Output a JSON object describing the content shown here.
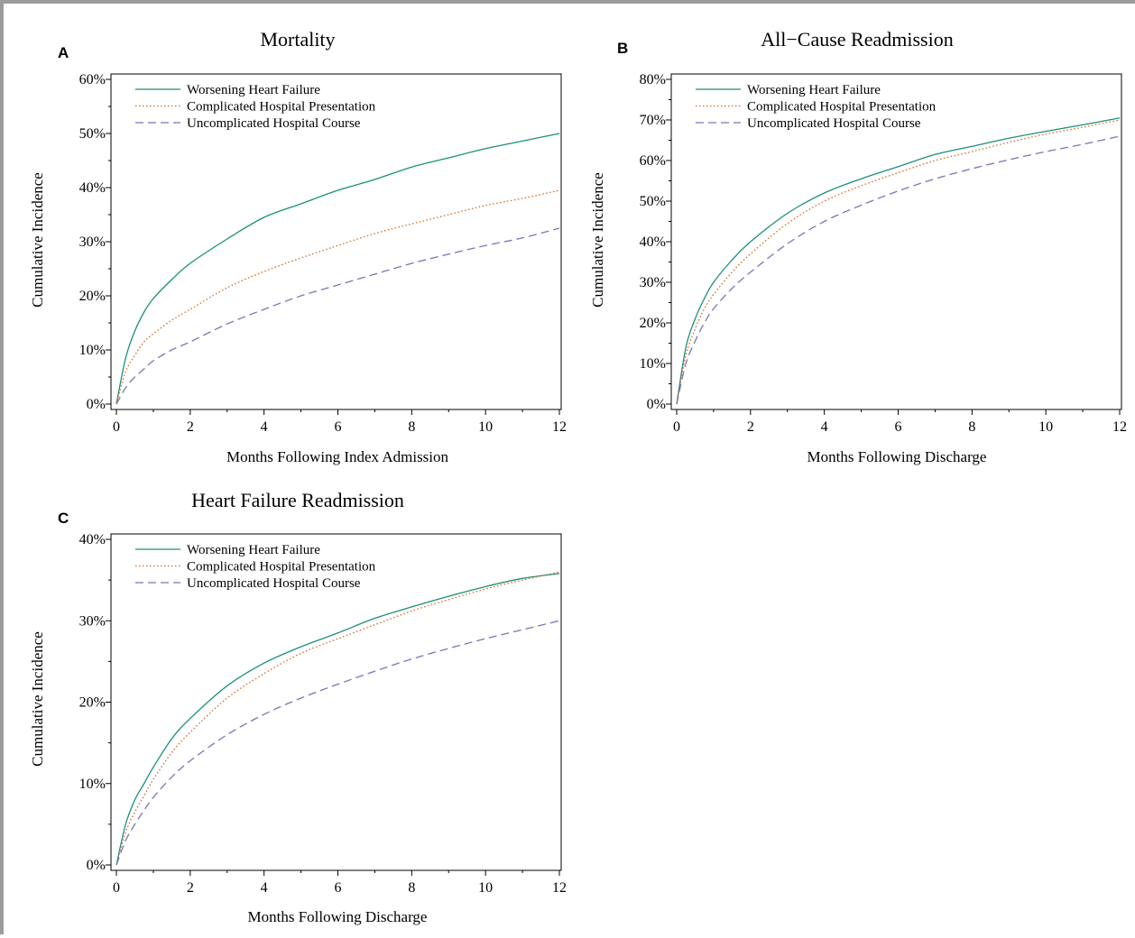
{
  "colors": {
    "worsening": "#1a9077",
    "complicated": "#d2691e",
    "uncomplicated": "#7b75b5"
  },
  "chart_data": [
    {
      "panel": "A",
      "type": "line",
      "title": "Mortality",
      "xlabel": "Months Following Index Admission",
      "ylabel": "Cumulative Incidence",
      "xlim": [
        0,
        12
      ],
      "ylim": [
        0,
        60
      ],
      "xticks": [
        0,
        2,
        4,
        6,
        8,
        10,
        12
      ],
      "yticks": [
        0,
        10,
        20,
        30,
        40,
        50,
        60
      ],
      "ytick_labels": [
        "0%",
        "10%",
        "20%",
        "30%",
        "40%",
        "50%",
        "60%"
      ],
      "legend_position": "top-left",
      "x": [
        0,
        0.25,
        0.5,
        0.75,
        1,
        1.5,
        2,
        3,
        4,
        5,
        6,
        7,
        8,
        9,
        10,
        11,
        12
      ],
      "series": [
        {
          "name": "Worsening Heart Failure",
          "style": "solid",
          "color": "#1a9077",
          "values": [
            0,
            8.5,
            13.5,
            17,
            19.5,
            23,
            26,
            30.5,
            34.5,
            37,
            39.5,
            41.5,
            43.8,
            45.5,
            47.2,
            48.6,
            50
          ]
        },
        {
          "name": "Complicated Hospital Presentation",
          "style": "dotted",
          "color": "#d2691e",
          "values": [
            0,
            6,
            9,
            11.5,
            13,
            15.5,
            17.5,
            21.5,
            24.5,
            27,
            29.3,
            31.5,
            33.3,
            35,
            36.7,
            38,
            39.5
          ]
        },
        {
          "name": "Uncomplicated Hospital Course",
          "style": "dashed",
          "color": "#7b75b5",
          "values": [
            0,
            3,
            5,
            6.5,
            8,
            10,
            11.5,
            14.8,
            17.5,
            20,
            22,
            24,
            26,
            27.7,
            29.3,
            30.7,
            32.5
          ]
        }
      ]
    },
    {
      "panel": "B",
      "type": "line",
      "title": "All−Cause Readmission",
      "xlabel": "Months Following Discharge",
      "ylabel": "Cumulative Incidence",
      "xlim": [
        0,
        12
      ],
      "ylim": [
        0,
        80
      ],
      "xticks": [
        0,
        2,
        4,
        6,
        8,
        10,
        12
      ],
      "yticks": [
        0,
        10,
        20,
        30,
        40,
        50,
        60,
        70,
        80
      ],
      "ytick_labels": [
        "0%",
        "10%",
        "20%",
        "30%",
        "40%",
        "50%",
        "60%",
        "70%",
        "80%"
      ],
      "legend_position": "top-left",
      "x": [
        0,
        0.25,
        0.5,
        0.75,
        1,
        1.5,
        2,
        3,
        4,
        5,
        6,
        7,
        8,
        9,
        10,
        11,
        12
      ],
      "series": [
        {
          "name": "Worsening Heart Failure",
          "style": "solid",
          "color": "#1a9077",
          "values": [
            0,
            14,
            21,
            26,
            30,
            35.5,
            40,
            47,
            52,
            55.5,
            58.5,
            61.5,
            63.5,
            65.5,
            67.2,
            68.8,
            70.5
          ]
        },
        {
          "name": "Complicated Hospital Presentation",
          "style": "dotted",
          "color": "#d2691e",
          "values": [
            0,
            12,
            18.5,
            23.5,
            27,
            32.5,
            37,
            44.5,
            50,
            53.8,
            57,
            60,
            62.2,
            64.5,
            66.5,
            68.2,
            70
          ]
        },
        {
          "name": "Uncomplicated Hospital Course",
          "style": "dashed",
          "color": "#7b75b5",
          "values": [
            0,
            10,
            15.5,
            20,
            23.5,
            28.5,
            32.5,
            39.5,
            45,
            49,
            52.5,
            55.5,
            58,
            60.2,
            62.2,
            64,
            66
          ]
        }
      ]
    },
    {
      "panel": "C",
      "type": "line",
      "title": "Heart Failure Readmission",
      "xlabel": "Months Following Discharge",
      "ylabel": "Cumulative Incidence",
      "xlim": [
        0,
        12
      ],
      "ylim": [
        0,
        40
      ],
      "xticks": [
        0,
        2,
        4,
        6,
        8,
        10,
        12
      ],
      "yticks": [
        0,
        10,
        20,
        30,
        40
      ],
      "ytick_labels": [
        "0%",
        "10%",
        "20%",
        "30%",
        "40%"
      ],
      "legend_position": "top-left",
      "x": [
        0,
        0.25,
        0.5,
        0.75,
        1,
        1.5,
        2,
        3,
        4,
        5,
        6,
        7,
        8,
        9,
        10,
        11,
        12
      ],
      "series": [
        {
          "name": "Worsening Heart Failure",
          "style": "solid",
          "color": "#1a9077",
          "values": [
            0,
            5,
            8,
            10,
            12,
            15.5,
            18,
            22,
            24.8,
            26.8,
            28.5,
            30.3,
            31.7,
            33,
            34.2,
            35.2,
            35.8
          ]
        },
        {
          "name": "Complicated Hospital Presentation",
          "style": "dotted",
          "color": "#d2691e",
          "values": [
            0,
            4,
            6.5,
            8.5,
            10.5,
            13.8,
            16.3,
            20.5,
            23.5,
            26,
            27.8,
            29.5,
            31.2,
            32.6,
            33.9,
            35,
            36
          ]
        },
        {
          "name": "Uncomplicated Hospital Course",
          "style": "dashed",
          "color": "#7b75b5",
          "values": [
            0,
            3,
            5,
            6.7,
            8.3,
            10.8,
            12.8,
            16,
            18.5,
            20.5,
            22.2,
            23.8,
            25.3,
            26.6,
            27.8,
            28.9,
            30
          ]
        }
      ]
    }
  ]
}
